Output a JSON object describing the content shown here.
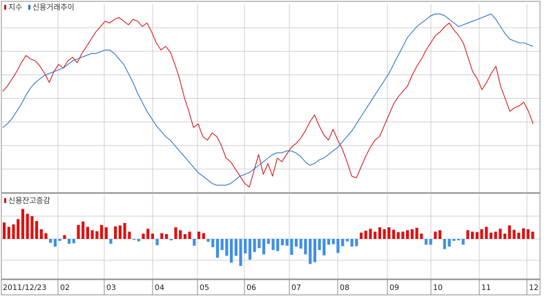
{
  "colors": {
    "index": "#d41515",
    "credit_trend": "#2a6fcf",
    "positive_bar": "#dd1111",
    "negative_bar": "#3f8fe6",
    "grid": "#cfcfcf",
    "frame": "#8a8a8a",
    "background": "#ffffff"
  },
  "legend_top": {
    "index_label": "지수",
    "credit_label": "신용거래추이"
  },
  "legend_bottom": {
    "change_label": "신용잔고증감"
  },
  "x_axis": {
    "start_label": "2011/12/23",
    "month_labels": [
      "02",
      "03",
      "04",
      "05",
      "06",
      "07",
      "08",
      "09",
      "10",
      "11",
      "12"
    ]
  },
  "chart_data": [
    {
      "type": "line",
      "series": [
        {
          "name": "지수",
          "values": [
            55,
            58,
            62,
            66,
            71,
            75,
            73,
            72,
            69,
            65,
            60,
            66,
            70,
            68,
            72,
            74,
            71,
            76,
            80,
            84,
            88,
            91,
            94,
            93,
            95,
            96,
            94,
            92,
            95,
            94,
            91,
            93,
            88,
            82,
            78,
            80,
            77,
            70,
            62,
            52,
            44,
            35,
            37,
            30,
            28,
            32,
            30,
            25,
            18,
            16,
            12,
            8,
            4,
            2,
            11,
            20,
            9,
            15,
            8,
            18,
            16,
            20,
            24,
            26,
            29,
            33,
            38,
            42,
            36,
            31,
            28,
            34,
            28,
            23,
            16,
            8,
            7,
            13,
            19,
            24,
            28,
            30,
            36,
            42,
            48,
            52,
            55,
            58,
            64,
            69,
            73,
            78,
            82,
            86,
            88,
            91,
            93,
            89,
            86,
            82,
            74,
            66,
            62,
            56,
            60,
            65,
            69,
            58,
            51,
            44,
            46,
            47,
            49,
            44,
            37
          ]
        },
        {
          "name": "신용거래추이",
          "values": [
            35,
            37,
            40,
            44,
            48,
            53,
            57,
            60,
            62,
            64,
            65,
            66,
            67,
            68,
            70,
            72,
            73,
            74,
            75,
            76,
            76,
            77,
            78,
            78,
            76,
            73,
            70,
            65,
            60,
            54,
            49,
            44,
            40,
            36,
            33,
            30,
            28,
            25,
            22,
            19,
            16,
            13,
            10,
            8,
            6,
            4,
            3,
            3,
            3,
            4,
            6,
            8,
            9,
            10,
            12,
            14,
            16,
            18,
            20,
            21,
            21,
            22,
            22,
            21,
            19,
            16,
            14,
            15,
            17,
            18,
            20,
            22,
            24,
            27,
            30,
            33,
            37,
            41,
            45,
            49,
            53,
            57,
            61,
            65,
            70,
            75,
            80,
            85,
            88,
            91,
            93,
            95,
            97,
            98,
            98,
            97,
            95,
            93,
            91,
            92,
            93,
            94,
            95,
            96,
            97,
            98,
            95,
            91,
            87,
            84,
            83,
            82,
            82,
            81,
            80
          ]
        }
      ]
    },
    {
      "type": "bar",
      "series": [
        {
          "name": "신용잔고증감",
          "values": [
            3.4,
            2.5,
            3.0,
            4.1,
            6.2,
            5.2,
            4.7,
            3.7,
            2.0,
            1.2,
            -0.8,
            -1.6,
            -0.4,
            0.8,
            -1.0,
            -0.9,
            2.9,
            3.6,
            2.5,
            1.8,
            1.6,
            2.9,
            2.4,
            -1.0,
            2.6,
            2.8,
            3.3,
            1.5,
            -0.2,
            -0.5,
            1.1,
            2.1,
            1.1,
            -1.3,
            1.2,
            1.0,
            -0.3,
            2.4,
            1.8,
            1.0,
            1.5,
            -1.4,
            1.5,
            1.2,
            -0.6,
            -1.7,
            -3.9,
            -2.3,
            -3.5,
            -4.9,
            -3.5,
            -5.6,
            -3.0,
            -4.3,
            -2.7,
            -1.9,
            -3.2,
            -1.0,
            -2.3,
            -2.5,
            -1.3,
            -1.4,
            -3.3,
            -1.6,
            -2.0,
            -3.2,
            -5.2,
            -4.8,
            -2.3,
            -3.4,
            -1.2,
            -1.1,
            -2.9,
            -1.5,
            -0.5,
            -1.6,
            -1.5,
            1.3,
            1.7,
            2.1,
            1.5,
            2.4,
            2.0,
            2.4,
            1.9,
            1.4,
            1.5,
            1.8,
            2.0,
            2.3,
            1.1,
            -1.2,
            -1.2,
            1.5,
            1.8,
            -2.1,
            -1.6,
            -0.4,
            -0.3,
            -1.2,
            1.8,
            1.5,
            1.4,
            2.0,
            2.5,
            1.3,
            1.5,
            2.1,
            1.1,
            2.8,
            1.9,
            1.3,
            2.2,
            2.0,
            1.5
          ]
        }
      ]
    }
  ]
}
